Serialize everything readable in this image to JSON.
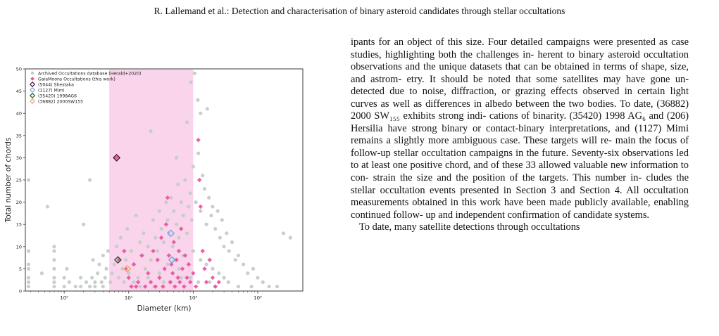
{
  "header": {
    "running_title": "R. Lallemand et al.: Detection and characterisation of binary asteroid candidates through stellar occultations"
  },
  "chart_data": {
    "type": "scatter",
    "xlabel": "Diameter (km)",
    "ylabel": "Total number of chords",
    "xscale": "log",
    "xlim": [
      0.25,
      5000
    ],
    "ylim": [
      0,
      50
    ],
    "x_ticks": [
      "10⁰",
      "10¹",
      "10²",
      "10³"
    ],
    "x_tick_values": [
      1,
      10,
      100,
      1000
    ],
    "y_ticks": [
      0,
      5,
      10,
      15,
      20,
      25,
      30,
      35,
      40,
      45,
      50
    ],
    "shaded_x_range": [
      5,
      100
    ],
    "shaded_color": "#f7c6e4",
    "legend_position": "top-left",
    "series": [
      {
        "name": "Archived Occultations database (Herald+2020)",
        "marker": "circle",
        "color": "#c5ccc8",
        "points": [
          [
            0.28,
            1
          ],
          [
            0.28,
            2
          ],
          [
            0.28,
            3
          ],
          [
            0.28,
            5
          ],
          [
            0.28,
            6
          ],
          [
            0.28,
            9
          ],
          [
            0.28,
            25
          ],
          [
            0.45,
            4
          ],
          [
            0.55,
            19
          ],
          [
            0.7,
            1
          ],
          [
            0.7,
            2
          ],
          [
            0.7,
            3
          ],
          [
            0.7,
            5
          ],
          [
            0.7,
            7
          ],
          [
            0.7,
            9
          ],
          [
            0.7,
            10
          ],
          [
            1.0,
            1
          ],
          [
            1.0,
            3
          ],
          [
            1.1,
            5
          ],
          [
            1.2,
            2
          ],
          [
            1.5,
            1
          ],
          [
            1.8,
            1
          ],
          [
            1.8,
            3
          ],
          [
            2.0,
            15
          ],
          [
            2.2,
            2
          ],
          [
            2.5,
            1
          ],
          [
            2.5,
            25
          ],
          [
            2.7,
            3
          ],
          [
            2.8,
            7
          ],
          [
            3.0,
            1
          ],
          [
            3.0,
            2
          ],
          [
            3.3,
            4
          ],
          [
            3.5,
            6
          ],
          [
            3.8,
            2
          ],
          [
            4.0,
            8
          ],
          [
            4.0,
            1
          ],
          [
            4.3,
            3
          ],
          [
            4.5,
            5
          ],
          [
            4.8,
            9
          ],
          [
            5.2,
            2
          ],
          [
            5.5,
            4
          ],
          [
            6.0,
            6
          ],
          [
            6.5,
            10
          ],
          [
            7.0,
            3
          ],
          [
            7.5,
            12
          ],
          [
            8.0,
            5
          ],
          [
            8.5,
            2
          ],
          [
            9.0,
            7
          ],
          [
            9.5,
            14
          ],
          [
            10,
            4
          ],
          [
            11,
            9
          ],
          [
            12,
            6
          ],
          [
            13,
            17
          ],
          [
            14,
            3
          ],
          [
            15,
            11
          ],
          [
            16,
            8
          ],
          [
            17,
            13
          ],
          [
            18,
            5
          ],
          [
            20,
            10
          ],
          [
            22,
            7
          ],
          [
            24,
            16
          ],
          [
            26,
            12
          ],
          [
            28,
            9
          ],
          [
            30,
            18
          ],
          [
            32,
            14
          ],
          [
            35,
            11
          ],
          [
            38,
            20
          ],
          [
            40,
            16
          ],
          [
            42,
            13
          ],
          [
            45,
            21
          ],
          [
            48,
            10
          ],
          [
            50,
            18
          ],
          [
            55,
            15
          ],
          [
            58,
            24
          ],
          [
            60,
            12
          ],
          [
            65,
            20
          ],
          [
            70,
            17
          ],
          [
            75,
            25
          ],
          [
            80,
            13
          ],
          [
            85,
            19
          ],
          [
            90,
            22
          ],
          [
            95,
            16
          ],
          [
            100,
            28
          ],
          [
            110,
            20
          ],
          [
            120,
            31
          ],
          [
            130,
            18
          ],
          [
            140,
            26
          ],
          [
            150,
            23
          ],
          [
            160,
            15
          ],
          [
            175,
            21
          ],
          [
            190,
            17
          ],
          [
            200,
            19
          ],
          [
            220,
            14
          ],
          [
            240,
            18
          ],
          [
            260,
            12
          ],
          [
            280,
            16
          ],
          [
            300,
            10
          ],
          [
            330,
            13
          ],
          [
            360,
            9
          ],
          [
            400,
            11
          ],
          [
            450,
            7
          ],
          [
            500,
            8
          ],
          [
            600,
            6
          ],
          [
            700,
            4
          ],
          [
            850,
            5
          ],
          [
            1000,
            3
          ],
          [
            1200,
            2
          ],
          [
            1500,
            1
          ],
          [
            2000,
            1
          ],
          [
            2500,
            13
          ],
          [
            3200,
            12
          ],
          [
            105,
            49
          ],
          [
            92,
            47
          ],
          [
            118,
            43
          ],
          [
            130,
            40
          ],
          [
            22,
            36
          ],
          [
            55,
            30
          ],
          [
            165,
            41
          ],
          [
            80,
            38
          ],
          [
            12,
            2
          ],
          [
            20,
            3
          ],
          [
            30,
            4
          ],
          [
            40,
            6
          ],
          [
            50,
            7
          ],
          [
            60,
            5
          ],
          [
            70,
            8
          ],
          [
            85,
            6
          ],
          [
            100,
            9
          ],
          [
            130,
            7
          ],
          [
            160,
            6
          ],
          [
            200,
            5
          ],
          [
            250,
            4
          ],
          [
            300,
            3
          ],
          [
            15,
            1
          ],
          [
            25,
            1
          ],
          [
            35,
            2
          ],
          [
            45,
            2
          ],
          [
            65,
            3
          ],
          [
            90,
            3
          ],
          [
            120,
            2
          ],
          [
            180,
            2
          ],
          [
            220,
            1
          ],
          [
            350,
            2
          ],
          [
            500,
            1
          ],
          [
            800,
            1
          ]
        ]
      },
      {
        "name": "GaiaMoons Occultations (this work)",
        "marker": "diamond",
        "color": "#e6509f",
        "points": [
          [
            6.5,
            30
          ],
          [
            7.0,
            7
          ],
          [
            8.5,
            9
          ],
          [
            9.0,
            5
          ],
          [
            10,
            3
          ],
          [
            11,
            1
          ],
          [
            12,
            6
          ],
          [
            13,
            1
          ],
          [
            14,
            2
          ],
          [
            16,
            8
          ],
          [
            18,
            1
          ],
          [
            20,
            4
          ],
          [
            22,
            2
          ],
          [
            24,
            9
          ],
          [
            26,
            1
          ],
          [
            28,
            7
          ],
          [
            30,
            3
          ],
          [
            32,
            12
          ],
          [
            34,
            1
          ],
          [
            36,
            5
          ],
          [
            38,
            15
          ],
          [
            40,
            21
          ],
          [
            42,
            8
          ],
          [
            44,
            2
          ],
          [
            46,
            6
          ],
          [
            48,
            4
          ],
          [
            50,
            11
          ],
          [
            52,
            1
          ],
          [
            55,
            7
          ],
          [
            58,
            3
          ],
          [
            60,
            9
          ],
          [
            62,
            2
          ],
          [
            65,
            14
          ],
          [
            68,
            5
          ],
          [
            72,
            1
          ],
          [
            75,
            8
          ],
          [
            80,
            3
          ],
          [
            85,
            6
          ],
          [
            90,
            2
          ],
          [
            100,
            4
          ],
          [
            110,
            1
          ],
          [
            120,
            34
          ],
          [
            125,
            25
          ],
          [
            130,
            19
          ],
          [
            140,
            9
          ],
          [
            150,
            5
          ],
          [
            160,
            2
          ],
          [
            180,
            7
          ],
          [
            200,
            3
          ],
          [
            220,
            1
          ],
          [
            250,
            2
          ]
        ]
      },
      {
        "name": "(5044) Shestaka",
        "marker": "diamond-open",
        "color": "#3a0f1f",
        "points": [
          [
            6.5,
            30
          ]
        ]
      },
      {
        "name": "(1127) Mimi",
        "marker": "diamond-open",
        "color": "#6fa3e0",
        "points": [
          [
            45,
            13
          ],
          [
            47,
            7
          ]
        ]
      },
      {
        "name": "(35420) 1998AG6",
        "marker": "diamond-open",
        "color": "#1c4f1c",
        "points": [
          [
            6.8,
            7
          ]
        ]
      },
      {
        "name": "(36882) 2000SW155",
        "marker": "diamond-open",
        "color": "#f2a064",
        "points": [
          [
            9.5,
            5
          ]
        ]
      }
    ]
  },
  "body": {
    "paragraph_1_lines": [
      "ipants for an object of this size. Four detailed campaigns were",
      "presented as case studies, highlighting both the challenges in-",
      "herent to binary asteroid occultation observations and the unique",
      "datasets that can be obtained in terms of shape, size, and astrom-",
      "etry. It should be noted that some satellites may have gone un-",
      "detected due to noise, diffraction, or grazing effects observed in",
      "certain light curves as well as differences in albedo between the",
      "two bodies. To date, (36882) 2000 SW₁₅₅ exhibits strong indi-",
      "cations of binarity. (35420) 1998 AG₆ and (206) Hersilia have",
      "strong binary or contact-binary interpretations, and (1127) Mimi",
      "remains a slightly more ambiguous case. These targets will re-",
      "main the focus of follow-up stellar occultation campaigns in",
      "the future. Seventy-six observations led to at least one positive",
      "chord, and of these 33 allowed valuable new information to con-",
      "strain the size and the position of the targets. This number in-",
      "cludes the stellar occultation events presented in Section 3 and",
      "Section 4. All occultation measurements obtained in this work",
      "have been made publicly available, enabling continued follow-",
      "up and independent confirmation of candidate systems."
    ],
    "paragraph_2_start": "To date, many satellite detections through occultations"
  }
}
